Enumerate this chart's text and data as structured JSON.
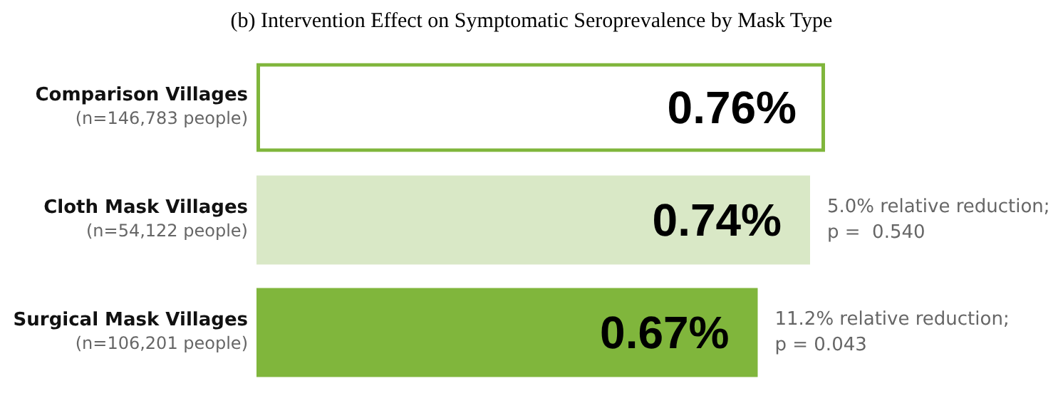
{
  "chart_data": {
    "type": "bar",
    "orientation": "horizontal",
    "title": "(b) Intervention Effect on Symptomatic Seroprevalence by Mask Type",
    "categories": [
      "Comparison Villages\n(n=146,783 people)",
      "Cloth Mask Villages\n(n=54,122 people)",
      "Surgical Mask Villages\n(n=106,201 people)"
    ],
    "values": [
      0.76,
      0.74,
      0.67
    ],
    "value_labels": [
      "0.76%",
      "0.74%",
      "0.67%"
    ],
    "colors": [
      "#80b63c",
      "#d9e8c6",
      "#80b63c"
    ],
    "annotations": [
      {
        "text": "5.0% relative reduction;\np =  0.540",
        "x": 0.74,
        "y": "Cloth Mask Villages\n(n=54,122 people)"
      },
      {
        "text": "11.2% relative reduction;\np = 0.043",
        "x": 0.67,
        "y": "Surgical Mask Villages\n(n=106,201 people)"
      }
    ],
    "legend": false,
    "tick_labels": "y"
  }
}
